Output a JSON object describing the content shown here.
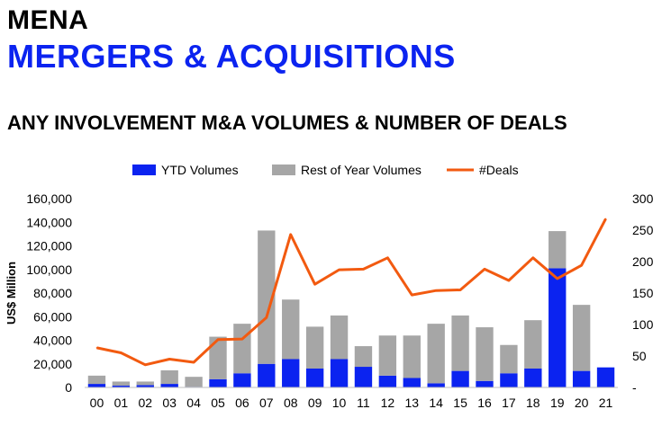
{
  "header": {
    "region": "MENA",
    "title": "MERGERS & ACQUISITIONS",
    "subtitle": "ANY INVOLVEMENT M&A VOLUMES & NUMBER OF DEALS"
  },
  "chart_data": {
    "type": "bar",
    "stacked": true,
    "categories": [
      "00",
      "01",
      "02",
      "03",
      "04",
      "05",
      "06",
      "07",
      "08",
      "09",
      "10",
      "11",
      "12",
      "13",
      "14",
      "15",
      "16",
      "17",
      "18",
      "19",
      "20",
      "21"
    ],
    "series": [
      {
        "name": "YTD Volumes",
        "color": "#0b23f0",
        "axis": "left",
        "values": [
          3000,
          1500,
          2000,
          3000,
          500,
          7000,
          12000,
          20000,
          24000,
          16000,
          24000,
          17500,
          10000,
          8000,
          3500,
          14000,
          5500,
          12000,
          16000,
          101000,
          14000,
          17000
        ]
      },
      {
        "name": "Rest of Year Volumes",
        "color": "#a6a6a6",
        "axis": "left",
        "values": [
          7000,
          3500,
          3000,
          11500,
          8500,
          36000,
          42000,
          113000,
          50500,
          35500,
          37000,
          17500,
          34000,
          36000,
          50500,
          47000,
          45500,
          24000,
          41000,
          31500,
          56000,
          0
        ]
      },
      {
        "name": "#Deals",
        "color": "#f25a10",
        "type": "line",
        "axis": "right",
        "values": [
          63,
          55,
          36,
          45,
          40,
          76,
          77,
          111,
          243,
          164,
          187,
          188,
          206,
          147,
          154,
          155,
          188,
          170,
          206,
          173,
          194,
          268
        ]
      }
    ],
    "ylabel": "US$ Million",
    "ylim": [
      0,
      160000
    ],
    "yticks": [
      "0",
      "20,000",
      "40,000",
      "60,000",
      "80,000",
      "100,000",
      "120,000",
      "140,000",
      "160,000"
    ],
    "y2lim": [
      0,
      300
    ],
    "y2ticks": [
      "-",
      "50",
      "100",
      "150",
      "200",
      "250",
      "300"
    ],
    "legend_position": "top",
    "grid": false
  }
}
